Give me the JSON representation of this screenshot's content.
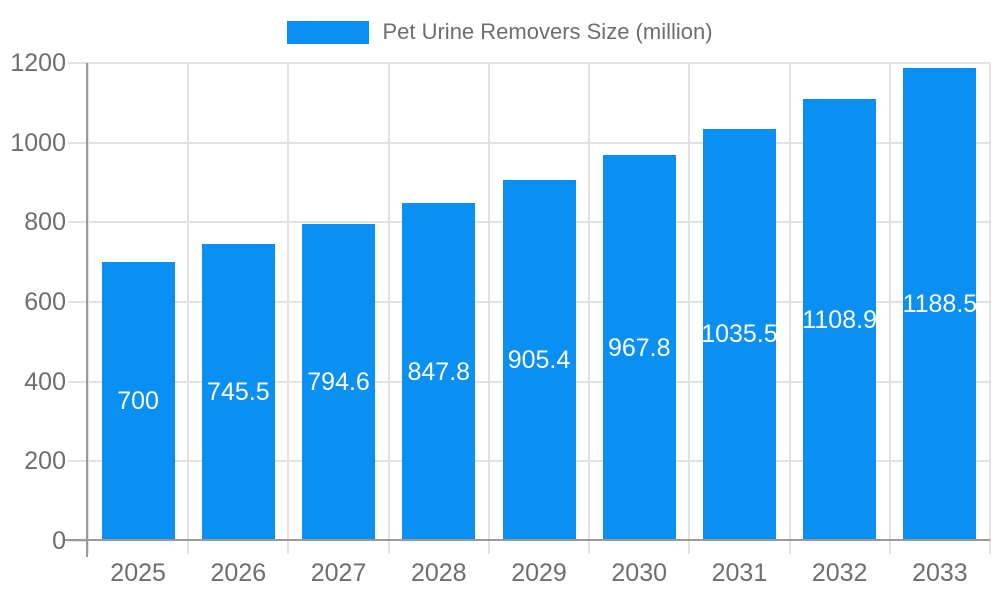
{
  "legend": {
    "series_label": "Pet Urine Removers Size (million)"
  },
  "chart_data": {
    "type": "bar",
    "title": "Pet Urine Removers Size (million)",
    "categories": [
      "2025",
      "2026",
      "2027",
      "2028",
      "2029",
      "2030",
      "2031",
      "2032",
      "2033"
    ],
    "values": [
      700,
      745.5,
      794.6,
      847.8,
      905.4,
      967.8,
      1035.5,
      1108.9,
      1188.5
    ],
    "value_labels": [
      "700",
      "745.5",
      "794.6",
      "847.8",
      "905.4",
      "967.8",
      "1035.5",
      "1108.9",
      "1188.5"
    ],
    "xlabel": "",
    "ylabel": "",
    "ylim": [
      0,
      1200
    ],
    "ytick_step": 200,
    "ytick_labels": [
      "0",
      "200",
      "400",
      "600",
      "800",
      "1000",
      "1200"
    ],
    "grid": true,
    "legend_position": "top-center",
    "value_label_position": "center-of-bar",
    "colors": {
      "bar": "#0a90f2",
      "grid": "#e2e2e2",
      "axis": "#9a9a9a",
      "tick_text": "#6e6e6e",
      "legend_text": "#6e6e6e",
      "value_text": "#ffffff",
      "background": "#ffffff"
    }
  }
}
